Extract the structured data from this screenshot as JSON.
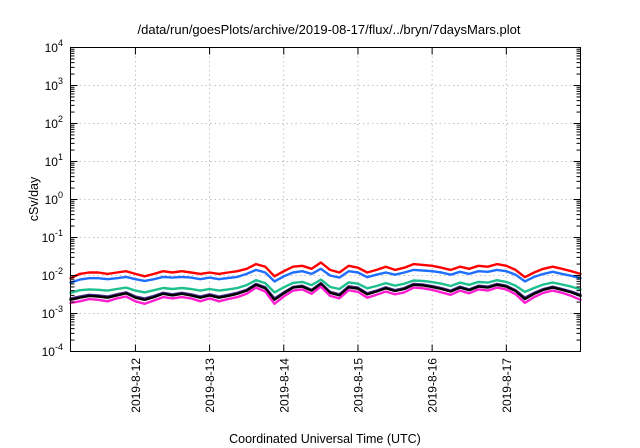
{
  "chart_data": {
    "type": "line",
    "title": "/data/run/goesPlots/archive/2019-08-17/flux/../bryn/7daysMars.plot",
    "xlabel": "Coordinated Universal Time (UTC)",
    "ylabel": "cSv/day",
    "yscale": "log",
    "ylim": [
      0.0001,
      10000
    ],
    "xlim": [
      "2019-08-11 03:00",
      "2019-08-18 00:00"
    ],
    "grid": true,
    "ytick_labels": [
      {
        "base": "10",
        "exp": "4"
      },
      {
        "base": "10",
        "exp": "3"
      },
      {
        "base": "10",
        "exp": "2"
      },
      {
        "base": "10",
        "exp": "1"
      },
      {
        "base": "10",
        "exp": "0"
      },
      {
        "base": "10",
        "exp": "-1"
      },
      {
        "base": "10",
        "exp": "-2"
      },
      {
        "base": "10",
        "exp": "-3"
      },
      {
        "base": "10",
        "exp": "-4"
      }
    ],
    "xtick_labels": [
      "2019-8-12",
      "2019-8-13",
      "2019-8-14",
      "2019-8-15",
      "2019-8-16",
      "2019-8-17"
    ],
    "x": [
      "2019-08-11 03:00",
      "2019-08-11 06:00",
      "2019-08-11 09:00",
      "2019-08-11 12:00",
      "2019-08-11 15:00",
      "2019-08-11 18:00",
      "2019-08-11 21:00",
      "2019-08-12 00:00",
      "2019-08-12 03:00",
      "2019-08-12 06:00",
      "2019-08-12 09:00",
      "2019-08-12 12:00",
      "2019-08-12 15:00",
      "2019-08-12 18:00",
      "2019-08-12 21:00",
      "2019-08-13 00:00",
      "2019-08-13 03:00",
      "2019-08-13 06:00",
      "2019-08-13 09:00",
      "2019-08-13 12:00",
      "2019-08-13 15:00",
      "2019-08-13 18:00",
      "2019-08-13 21:00",
      "2019-08-14 00:00",
      "2019-08-14 03:00",
      "2019-08-14 06:00",
      "2019-08-14 09:00",
      "2019-08-14 12:00",
      "2019-08-14 15:00",
      "2019-08-14 18:00",
      "2019-08-14 21:00",
      "2019-08-15 00:00",
      "2019-08-15 03:00",
      "2019-08-15 06:00",
      "2019-08-15 09:00",
      "2019-08-15 12:00",
      "2019-08-15 15:00",
      "2019-08-15 18:00",
      "2019-08-15 21:00",
      "2019-08-16 00:00",
      "2019-08-16 03:00",
      "2019-08-16 06:00",
      "2019-08-16 09:00",
      "2019-08-16 12:00",
      "2019-08-16 15:00",
      "2019-08-16 18:00",
      "2019-08-16 21:00",
      "2019-08-17 00:00",
      "2019-08-17 03:00",
      "2019-08-17 06:00",
      "2019-08-17 09:00",
      "2019-08-17 12:00",
      "2019-08-17 15:00",
      "2019-08-17 18:00",
      "2019-08-17 21:00",
      "2019-08-18 00:00"
    ],
    "series": [
      {
        "color": "#ff0000",
        "values": [
          0.0085,
          0.011,
          0.012,
          0.012,
          0.011,
          0.012,
          0.013,
          0.011,
          0.0095,
          0.011,
          0.013,
          0.012,
          0.013,
          0.012,
          0.011,
          0.012,
          0.011,
          0.012,
          0.013,
          0.015,
          0.02,
          0.017,
          0.0095,
          0.013,
          0.017,
          0.018,
          0.015,
          0.022,
          0.014,
          0.012,
          0.018,
          0.016,
          0.012,
          0.014,
          0.017,
          0.014,
          0.016,
          0.02,
          0.019,
          0.018,
          0.016,
          0.014,
          0.017,
          0.015,
          0.018,
          0.017,
          0.02,
          0.018,
          0.014,
          0.009,
          0.012,
          0.015,
          0.017,
          0.015,
          0.013,
          0.011
        ]
      },
      {
        "color": "#1f6fff",
        "values": [
          0.0065,
          0.0078,
          0.0085,
          0.0085,
          0.008,
          0.0085,
          0.0092,
          0.008,
          0.0072,
          0.008,
          0.0092,
          0.0088,
          0.0092,
          0.0088,
          0.008,
          0.0088,
          0.008,
          0.0086,
          0.0092,
          0.011,
          0.014,
          0.012,
          0.007,
          0.0095,
          0.012,
          0.013,
          0.011,
          0.015,
          0.01,
          0.0088,
          0.013,
          0.012,
          0.009,
          0.0105,
          0.012,
          0.0105,
          0.012,
          0.014,
          0.0135,
          0.013,
          0.012,
          0.0105,
          0.0125,
          0.011,
          0.013,
          0.0125,
          0.014,
          0.013,
          0.0105,
          0.007,
          0.0092,
          0.011,
          0.0125,
          0.011,
          0.0098,
          0.0085
        ]
      },
      {
        "color": "#1dbf8f",
        "values": [
          0.0035,
          0.0041,
          0.0043,
          0.0042,
          0.004,
          0.0044,
          0.0048,
          0.004,
          0.0036,
          0.0041,
          0.0047,
          0.0044,
          0.0047,
          0.0044,
          0.004,
          0.0044,
          0.004,
          0.0043,
          0.0047,
          0.0056,
          0.0075,
          0.0063,
          0.0036,
          0.0049,
          0.0064,
          0.0068,
          0.0056,
          0.0078,
          0.005,
          0.0044,
          0.0066,
          0.0061,
          0.0046,
          0.0053,
          0.0063,
          0.0054,
          0.0061,
          0.0074,
          0.0072,
          0.0067,
          0.0061,
          0.0053,
          0.0065,
          0.0057,
          0.0068,
          0.0065,
          0.0075,
          0.0068,
          0.0054,
          0.0037,
          0.0047,
          0.0058,
          0.0065,
          0.0058,
          0.0051,
          0.0043
        ]
      },
      {
        "color": "#4a2f8f",
        "values": [
          0.0025,
          0.0028,
          0.0031,
          0.003,
          0.0028,
          0.0032,
          0.0036,
          0.0028,
          0.0025,
          0.0029,
          0.0035,
          0.0032,
          0.0035,
          0.0032,
          0.0028,
          0.0032,
          0.0028,
          0.0031,
          0.0035,
          0.0042,
          0.006,
          0.0049,
          0.0025,
          0.0036,
          0.005,
          0.0054,
          0.0042,
          0.0063,
          0.0037,
          0.0032,
          0.0052,
          0.0048,
          0.0034,
          0.004,
          0.0049,
          0.0041,
          0.0047,
          0.006,
          0.0058,
          0.0053,
          0.0047,
          0.004,
          0.0051,
          0.0043,
          0.0054,
          0.0051,
          0.006,
          0.0054,
          0.0041,
          0.0026,
          0.0035,
          0.0044,
          0.0051,
          0.0044,
          0.0038,
          0.0031
        ]
      },
      {
        "color": "#000000",
        "values": [
          0.0023,
          0.0026,
          0.0029,
          0.0028,
          0.0026,
          0.003,
          0.0034,
          0.0026,
          0.0023,
          0.0027,
          0.0033,
          0.003,
          0.0033,
          0.003,
          0.0026,
          0.003,
          0.0026,
          0.0029,
          0.0033,
          0.004,
          0.0057,
          0.0046,
          0.0023,
          0.0034,
          0.0048,
          0.0051,
          0.004,
          0.006,
          0.0035,
          0.003,
          0.0049,
          0.0045,
          0.0032,
          0.0038,
          0.0046,
          0.0039,
          0.0044,
          0.0057,
          0.0055,
          0.005,
          0.0044,
          0.0038,
          0.0048,
          0.0041,
          0.0051,
          0.0048,
          0.0057,
          0.0051,
          0.0039,
          0.0024,
          0.0033,
          0.0042,
          0.0048,
          0.0042,
          0.0036,
          0.0029
        ]
      },
      {
        "color": "#ff1fd0",
        "values": [
          0.0019,
          0.0021,
          0.0024,
          0.0023,
          0.0021,
          0.0025,
          0.0028,
          0.0021,
          0.0018,
          0.0022,
          0.0027,
          0.0025,
          0.0027,
          0.0025,
          0.0021,
          0.0025,
          0.0021,
          0.0024,
          0.0027,
          0.0033,
          0.0048,
          0.0038,
          0.0018,
          0.0028,
          0.004,
          0.0043,
          0.0033,
          0.0051,
          0.0029,
          0.0025,
          0.0041,
          0.0037,
          0.0026,
          0.0031,
          0.0038,
          0.0032,
          0.0036,
          0.0048,
          0.0046,
          0.0042,
          0.0036,
          0.0031,
          0.004,
          0.0034,
          0.0043,
          0.004,
          0.0048,
          0.0043,
          0.0032,
          0.0019,
          0.0027,
          0.0035,
          0.004,
          0.0035,
          0.0029,
          0.0023
        ]
      }
    ]
  }
}
